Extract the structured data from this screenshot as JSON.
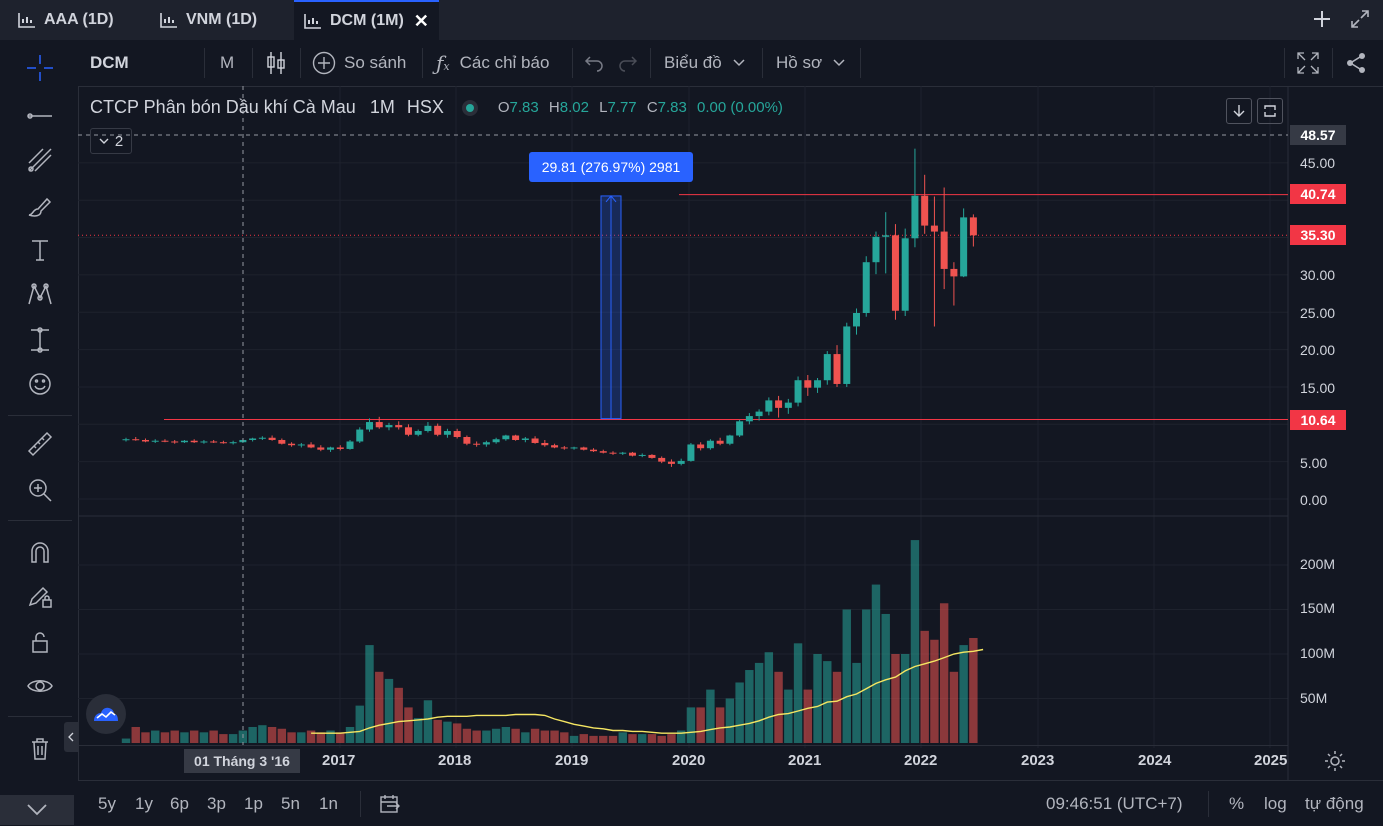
{
  "tabs": [
    {
      "label": "AAA (1D)",
      "active": false
    },
    {
      "label": "VNM (1D)",
      "active": false
    },
    {
      "label": "DCM (1M)",
      "active": true
    }
  ],
  "toolbar": {
    "symbol": "DCM",
    "interval": "M",
    "compare_label": "So sánh",
    "indicators_label": "Các chỉ báo",
    "chart_menu_label": "Biểu đồ",
    "profile_menu_label": "Hồ sơ"
  },
  "legend": {
    "name": "CTCP Phân bón Dầu khí Cà Mau",
    "interval": "1M",
    "exchange": "HSX",
    "o_label": "O",
    "o_val": "7.83",
    "h_label": "H",
    "h_val": "8.02",
    "l_label": "L",
    "l_val": "7.77",
    "c_label": "C",
    "c_val": "7.83",
    "change": "0.00 (0.00%)",
    "collapse_count": "2"
  },
  "measure_label": "29.81 (276.97%) 2981",
  "price_axis": {
    "ticks": [
      "45.00",
      "30.00",
      "25.00",
      "20.00",
      "15.00",
      "5.00",
      "0.00"
    ],
    "badges": [
      {
        "text": "48.57",
        "color": "#363a45"
      },
      {
        "text": "40.74",
        "color": "#f23645"
      },
      {
        "text": "35.30",
        "color": "#f23645"
      },
      {
        "text": "10.64",
        "color": "#f23645"
      }
    ]
  },
  "volume_axis": {
    "ticks": [
      "200M",
      "150M",
      "100M",
      "50M"
    ]
  },
  "time_axis": {
    "crosshair_label": "01 Tháng 3 '16",
    "years": [
      "2017",
      "2018",
      "2019",
      "2020",
      "2021",
      "2022",
      "2023",
      "2024",
      "2025"
    ]
  },
  "bottom": {
    "ranges": [
      "5y",
      "1y",
      "6p",
      "3p",
      "1p",
      "5n",
      "1n"
    ],
    "clock": "09:46:51 (UTC+7)",
    "percent": "%",
    "log": "log",
    "auto": "tự động"
  },
  "colors": {
    "up": "#26a69a",
    "down": "#ef5350",
    "accent": "#2962ff",
    "ma": "#f5e662"
  },
  "chart_data": {
    "type": "candlestick",
    "interval": "1M",
    "y_ticks": [
      0,
      5,
      10,
      15,
      20,
      25,
      30,
      35,
      40,
      45
    ],
    "volume_ticks_m": [
      50,
      100,
      150,
      200
    ],
    "levels": [
      40.74,
      35.3,
      10.64
    ],
    "measure": {
      "from": 10.76,
      "to": 40.57,
      "change": 29.81,
      "percent": 276.97,
      "ticks": 2981
    },
    "candles": [
      {
        "o": 7.9,
        "h": 8.2,
        "l": 7.7,
        "c": 8.0,
        "v": 5
      },
      {
        "o": 8.0,
        "h": 8.3,
        "l": 7.8,
        "c": 7.9,
        "v": 18
      },
      {
        "o": 7.9,
        "h": 8.1,
        "l": 7.6,
        "c": 7.7,
        "v": 12
      },
      {
        "o": 7.7,
        "h": 8.0,
        "l": 7.5,
        "c": 7.8,
        "v": 14
      },
      {
        "o": 7.8,
        "h": 8.0,
        "l": 7.6,
        "c": 7.7,
        "v": 12
      },
      {
        "o": 7.7,
        "h": 7.9,
        "l": 7.4,
        "c": 7.6,
        "v": 14
      },
      {
        "o": 7.6,
        "h": 7.9,
        "l": 7.5,
        "c": 7.8,
        "v": 12
      },
      {
        "o": 7.8,
        "h": 8.0,
        "l": 7.5,
        "c": 7.6,
        "v": 14
      },
      {
        "o": 7.6,
        "h": 7.9,
        "l": 7.4,
        "c": 7.7,
        "v": 12
      },
      {
        "o": 7.7,
        "h": 7.9,
        "l": 7.5,
        "c": 7.6,
        "v": 14
      },
      {
        "o": 7.6,
        "h": 7.8,
        "l": 7.4,
        "c": 7.5,
        "v": 10
      },
      {
        "o": 7.5,
        "h": 7.8,
        "l": 7.3,
        "c": 7.6,
        "v": 10
      },
      {
        "o": 7.6,
        "h": 8.0,
        "l": 7.5,
        "c": 7.9,
        "v": 14
      },
      {
        "o": 7.9,
        "h": 8.2,
        "l": 7.7,
        "c": 8.1,
        "v": 18
      },
      {
        "o": 8.1,
        "h": 8.4,
        "l": 7.9,
        "c": 8.2,
        "v": 20
      },
      {
        "o": 8.2,
        "h": 8.5,
        "l": 7.8,
        "c": 7.9,
        "v": 18
      },
      {
        "o": 7.9,
        "h": 8.1,
        "l": 7.3,
        "c": 7.4,
        "v": 16
      },
      {
        "o": 7.4,
        "h": 7.6,
        "l": 7.0,
        "c": 7.2,
        "v": 12
      },
      {
        "o": 7.2,
        "h": 7.5,
        "l": 6.9,
        "c": 7.3,
        "v": 12
      },
      {
        "o": 7.3,
        "h": 7.6,
        "l": 6.8,
        "c": 6.9,
        "v": 14
      },
      {
        "o": 6.9,
        "h": 7.2,
        "l": 6.4,
        "c": 6.6,
        "v": 12
      },
      {
        "o": 6.6,
        "h": 7.0,
        "l": 6.3,
        "c": 6.9,
        "v": 14
      },
      {
        "o": 6.9,
        "h": 7.2,
        "l": 6.5,
        "c": 6.7,
        "v": 12
      },
      {
        "o": 6.7,
        "h": 7.9,
        "l": 6.6,
        "c": 7.7,
        "v": 18
      },
      {
        "o": 7.7,
        "h": 9.6,
        "l": 7.5,
        "c": 9.3,
        "v": 42
      },
      {
        "o": 9.3,
        "h": 10.8,
        "l": 9.0,
        "c": 10.3,
        "v": 110
      },
      {
        "o": 10.3,
        "h": 11.0,
        "l": 9.4,
        "c": 9.6,
        "v": 80
      },
      {
        "o": 9.6,
        "h": 10.2,
        "l": 9.2,
        "c": 9.9,
        "v": 72
      },
      {
        "o": 9.9,
        "h": 10.4,
        "l": 9.3,
        "c": 9.6,
        "v": 62
      },
      {
        "o": 9.6,
        "h": 10.0,
        "l": 8.4,
        "c": 8.6,
        "v": 40
      },
      {
        "o": 8.6,
        "h": 9.3,
        "l": 8.4,
        "c": 9.1,
        "v": 28
      },
      {
        "o": 9.1,
        "h": 10.3,
        "l": 8.9,
        "c": 9.8,
        "v": 48
      },
      {
        "o": 9.8,
        "h": 10.1,
        "l": 8.4,
        "c": 8.6,
        "v": 26
      },
      {
        "o": 8.6,
        "h": 9.4,
        "l": 8.2,
        "c": 9.1,
        "v": 24
      },
      {
        "o": 9.1,
        "h": 9.4,
        "l": 8.1,
        "c": 8.3,
        "v": 22
      },
      {
        "o": 8.3,
        "h": 8.5,
        "l": 7.2,
        "c": 7.4,
        "v": 16
      },
      {
        "o": 7.4,
        "h": 7.7,
        "l": 7.0,
        "c": 7.3,
        "v": 14
      },
      {
        "o": 7.3,
        "h": 7.8,
        "l": 7.0,
        "c": 7.6,
        "v": 14
      },
      {
        "o": 7.6,
        "h": 8.2,
        "l": 7.4,
        "c": 8.0,
        "v": 16
      },
      {
        "o": 8.0,
        "h": 8.6,
        "l": 7.8,
        "c": 8.5,
        "v": 18
      },
      {
        "o": 8.5,
        "h": 8.6,
        "l": 7.8,
        "c": 7.9,
        "v": 16
      },
      {
        "o": 7.9,
        "h": 8.3,
        "l": 7.6,
        "c": 8.1,
        "v": 12
      },
      {
        "o": 8.1,
        "h": 8.4,
        "l": 7.4,
        "c": 7.5,
        "v": 16
      },
      {
        "o": 7.5,
        "h": 7.9,
        "l": 7.0,
        "c": 7.2,
        "v": 14
      },
      {
        "o": 7.2,
        "h": 7.4,
        "l": 6.8,
        "c": 6.9,
        "v": 14
      },
      {
        "o": 6.9,
        "h": 7.1,
        "l": 6.6,
        "c": 6.8,
        "v": 12
      },
      {
        "o": 6.8,
        "h": 7.0,
        "l": 6.6,
        "c": 6.9,
        "v": 8
      },
      {
        "o": 6.9,
        "h": 7.0,
        "l": 6.5,
        "c": 6.6,
        "v": 10
      },
      {
        "o": 6.6,
        "h": 6.8,
        "l": 6.3,
        "c": 6.4,
        "v": 8
      },
      {
        "o": 6.4,
        "h": 6.6,
        "l": 6.1,
        "c": 6.2,
        "v": 8
      },
      {
        "o": 6.2,
        "h": 6.4,
        "l": 5.9,
        "c": 6.1,
        "v": 8
      },
      {
        "o": 6.1,
        "h": 6.3,
        "l": 5.9,
        "c": 6.2,
        "v": 12
      },
      {
        "o": 6.2,
        "h": 6.3,
        "l": 5.7,
        "c": 5.8,
        "v": 10
      },
      {
        "o": 5.8,
        "h": 6.1,
        "l": 5.6,
        "c": 5.9,
        "v": 10
      },
      {
        "o": 5.9,
        "h": 6.0,
        "l": 5.4,
        "c": 5.5,
        "v": 10
      },
      {
        "o": 5.5,
        "h": 5.7,
        "l": 4.8,
        "c": 5.0,
        "v": 8
      },
      {
        "o": 5.0,
        "h": 5.3,
        "l": 4.3,
        "c": 4.7,
        "v": 10
      },
      {
        "o": 4.7,
        "h": 5.4,
        "l": 4.5,
        "c": 5.1,
        "v": 14
      },
      {
        "o": 5.1,
        "h": 7.5,
        "l": 5.0,
        "c": 7.3,
        "v": 40
      },
      {
        "o": 7.3,
        "h": 7.6,
        "l": 6.5,
        "c": 6.8,
        "v": 40
      },
      {
        "o": 6.8,
        "h": 8.0,
        "l": 6.6,
        "c": 7.8,
        "v": 60
      },
      {
        "o": 7.8,
        "h": 8.2,
        "l": 7.2,
        "c": 7.4,
        "v": 40
      },
      {
        "o": 7.4,
        "h": 8.6,
        "l": 7.2,
        "c": 8.5,
        "v": 50
      },
      {
        "o": 8.5,
        "h": 10.6,
        "l": 8.3,
        "c": 10.4,
        "v": 68
      },
      {
        "o": 10.4,
        "h": 11.5,
        "l": 10.0,
        "c": 11.1,
        "v": 82
      },
      {
        "o": 11.1,
        "h": 12.0,
        "l": 10.5,
        "c": 11.7,
        "v": 90
      },
      {
        "o": 11.7,
        "h": 13.6,
        "l": 11.2,
        "c": 13.2,
        "v": 102
      },
      {
        "o": 13.2,
        "h": 13.8,
        "l": 10.9,
        "c": 12.2,
        "v": 80
      },
      {
        "o": 12.2,
        "h": 13.4,
        "l": 11.4,
        "c": 12.9,
        "v": 60
      },
      {
        "o": 12.9,
        "h": 16.4,
        "l": 12.4,
        "c": 15.9,
        "v": 112
      },
      {
        "o": 15.9,
        "h": 16.6,
        "l": 13.8,
        "c": 14.9,
        "v": 60
      },
      {
        "o": 14.9,
        "h": 16.2,
        "l": 14.2,
        "c": 15.9,
        "v": 100
      },
      {
        "o": 15.9,
        "h": 19.8,
        "l": 15.3,
        "c": 19.4,
        "v": 92
      },
      {
        "o": 19.4,
        "h": 20.6,
        "l": 15.0,
        "c": 15.4,
        "v": 80
      },
      {
        "o": 15.4,
        "h": 23.6,
        "l": 15.0,
        "c": 23.1,
        "v": 150
      },
      {
        "o": 23.1,
        "h": 25.5,
        "l": 22.0,
        "c": 24.9,
        "v": 90
      },
      {
        "o": 24.9,
        "h": 32.5,
        "l": 24.4,
        "c": 31.7,
        "v": 150
      },
      {
        "o": 31.7,
        "h": 35.8,
        "l": 30.1,
        "c": 35.1,
        "v": 178
      },
      {
        "o": 35.1,
        "h": 38.4,
        "l": 30.2,
        "c": 35.3,
        "v": 145
      },
      {
        "o": 35.3,
        "h": 36.8,
        "l": 24.0,
        "c": 25.2,
        "v": 100
      },
      {
        "o": 25.2,
        "h": 36.2,
        "l": 24.5,
        "c": 34.9,
        "v": 100
      },
      {
        "o": 34.9,
        "h": 46.9,
        "l": 33.7,
        "c": 40.6,
        "v": 228
      },
      {
        "o": 40.6,
        "h": 43.4,
        "l": 35.5,
        "c": 36.6,
        "v": 126
      },
      {
        "o": 36.6,
        "h": 40.5,
        "l": 23.1,
        "c": 35.8,
        "v": 116
      },
      {
        "o": 35.8,
        "h": 41.7,
        "l": 28.1,
        "c": 30.8,
        "v": 157
      },
      {
        "o": 30.8,
        "h": 31.7,
        "l": 25.9,
        "c": 29.8,
        "v": 80
      },
      {
        "o": 29.8,
        "h": 38.9,
        "l": 29.7,
        "c": 37.7,
        "v": 110
      },
      {
        "o": 37.7,
        "h": 38.1,
        "l": 33.8,
        "c": 35.3,
        "v": 118
      }
    ],
    "ma": [
      null,
      null,
      null,
      null,
      null,
      null,
      null,
      null,
      null,
      null,
      null,
      null,
      null,
      null,
      null,
      null,
      null,
      null,
      null,
      11,
      11,
      11,
      11,
      12,
      13,
      17,
      20,
      22,
      24,
      25,
      26,
      27,
      29,
      30,
      30,
      30,
      31,
      31,
      31,
      31,
      32,
      32,
      32,
      31,
      27,
      24,
      21,
      19,
      17,
      16,
      14,
      14,
      13,
      13,
      12,
      11,
      11,
      11,
      12,
      13,
      15,
      17,
      18,
      20,
      22,
      25,
      29,
      32,
      33,
      36,
      39,
      41,
      46,
      47,
      52,
      55,
      61,
      67,
      71,
      74,
      81,
      86,
      89,
      92,
      96,
      100,
      102,
      103,
      105
    ]
  }
}
